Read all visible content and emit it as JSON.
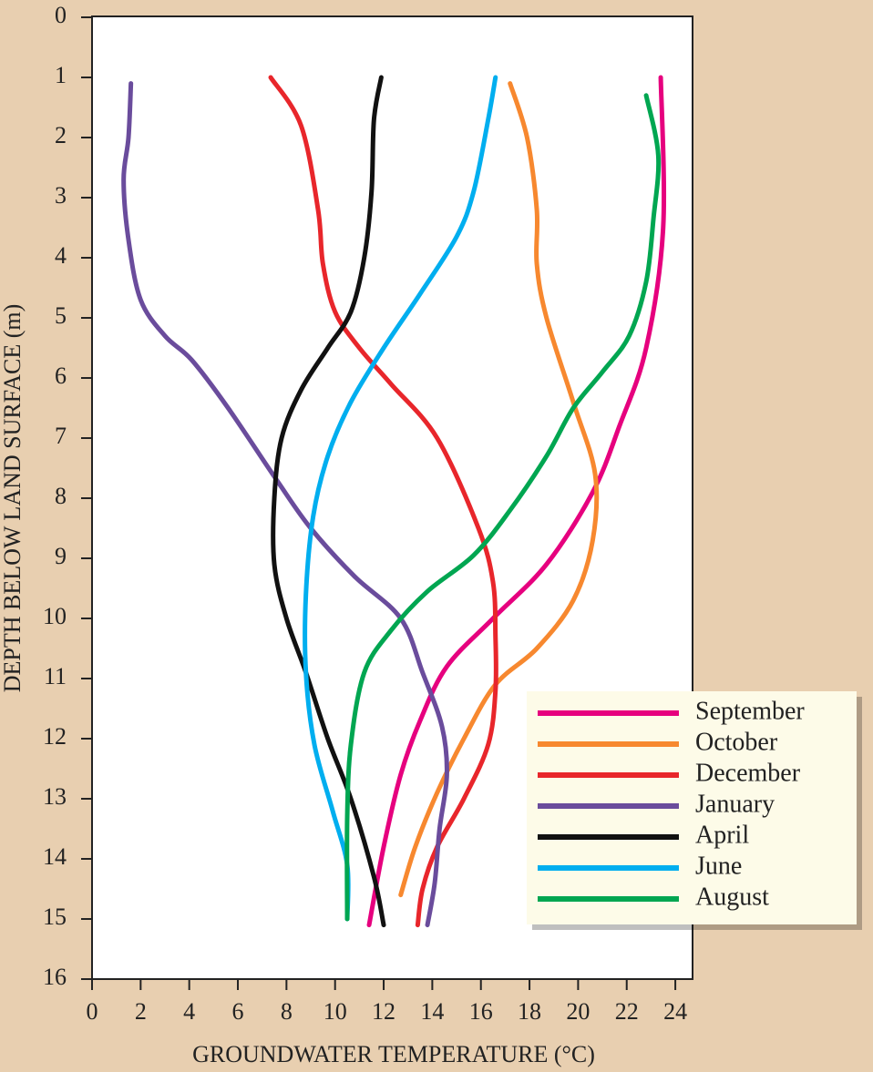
{
  "chart_data": {
    "type": "line",
    "x_label": "GROUNDWATER TEMPERATURE (°C)",
    "y_label": "DEPTH BELOW LAND SURFACE (m)",
    "xlim": [
      0,
      24.7
    ],
    "xticks": [
      0,
      2,
      4,
      6,
      8,
      10,
      12,
      14,
      16,
      18,
      20,
      22,
      24
    ],
    "ylim": [
      16,
      0
    ],
    "yticks": [
      0,
      1,
      2,
      3,
      4,
      5,
      6,
      7,
      8,
      9,
      10,
      11,
      12,
      13,
      14,
      15,
      16
    ],
    "legend_position": "lower right",
    "series": [
      {
        "name": "September",
        "color": "#e6007e",
        "x": [
          23.4,
          23.5,
          22.8,
          21.7,
          20.6,
          18.7,
          16.5,
          14.6,
          13.5,
          12.7,
          12.0,
          11.4
        ],
        "y": [
          1.0,
          3.5,
          5.5,
          6.8,
          7.9,
          9.1,
          10.0,
          10.8,
          11.7,
          12.6,
          13.8,
          15.1
        ]
      },
      {
        "name": "October",
        "color": "#f7882f",
        "x": [
          17.2,
          17.9,
          18.3,
          18.3,
          18.7,
          19.8,
          20.7,
          20.6,
          19.8,
          18.3,
          16.6,
          15.3,
          14.2,
          13.3,
          12.7
        ],
        "y": [
          1.1,
          2.0,
          3.2,
          4.1,
          5.0,
          6.4,
          7.6,
          8.7,
          9.7,
          10.5,
          11.1,
          12.0,
          12.9,
          13.8,
          14.6
        ]
      },
      {
        "name": "December",
        "color": "#e8262b",
        "x": [
          7.35,
          8.6,
          9.3,
          9.5,
          10.0,
          11.0,
          12.3,
          14.2,
          15.9,
          16.5,
          16.6,
          16.6,
          16.3,
          15.3,
          14.2,
          13.6,
          13.4
        ],
        "y": [
          1.0,
          1.8,
          3.2,
          4.1,
          4.9,
          5.5,
          6.1,
          7.0,
          8.5,
          9.4,
          10.3,
          11.2,
          12.1,
          13.0,
          13.8,
          14.5,
          15.1
        ]
      },
      {
        "name": "January",
        "color": "#6a4c9c",
        "x": [
          1.6,
          1.5,
          1.3,
          1.5,
          2.0,
          3.0,
          4.1,
          5.6,
          7.6,
          9.0,
          10.8,
          12.7,
          13.6,
          14.4,
          14.6,
          14.3,
          14.1,
          13.8
        ],
        "y": [
          1.1,
          2.0,
          2.7,
          3.7,
          4.7,
          5.3,
          5.7,
          6.5,
          7.7,
          8.5,
          9.3,
          10.0,
          10.9,
          11.8,
          12.6,
          13.5,
          14.4,
          15.1
        ]
      },
      {
        "name": "April",
        "color": "#111111",
        "x": [
          11.9,
          11.6,
          11.5,
          11.2,
          10.65,
          9.7,
          8.6,
          7.8,
          7.5,
          7.5,
          8.0,
          8.8,
          9.7,
          10.65,
          11.6,
          12.0
        ],
        "y": [
          1.0,
          1.7,
          2.9,
          4.0,
          4.9,
          5.5,
          6.2,
          7.0,
          8.0,
          9.1,
          10.0,
          10.9,
          12.0,
          13.0,
          14.3,
          15.1
        ]
      },
      {
        "name": "June",
        "color": "#00aeef",
        "x": [
          16.6,
          16.3,
          15.7,
          15.0,
          13.5,
          12.0,
          10.65,
          9.7,
          9.1,
          8.8,
          8.8,
          9.15,
          9.9,
          10.5,
          10.5
        ],
        "y": [
          1.0,
          1.7,
          2.9,
          3.65,
          4.6,
          5.5,
          6.4,
          7.3,
          8.3,
          9.6,
          10.9,
          12.1,
          13.2,
          14.1,
          15.0
        ]
      },
      {
        "name": "August",
        "color": "#00a651",
        "x": [
          22.8,
          23.3,
          23.1,
          22.8,
          22.1,
          21.0,
          19.8,
          18.7,
          17.2,
          15.7,
          13.8,
          12.3,
          11.2,
          10.65,
          10.5,
          10.5
        ],
        "y": [
          1.3,
          2.3,
          3.35,
          4.4,
          5.3,
          5.9,
          6.5,
          7.3,
          8.2,
          8.95,
          9.55,
          10.2,
          10.9,
          12.1,
          13.3,
          15.0
        ]
      }
    ]
  }
}
